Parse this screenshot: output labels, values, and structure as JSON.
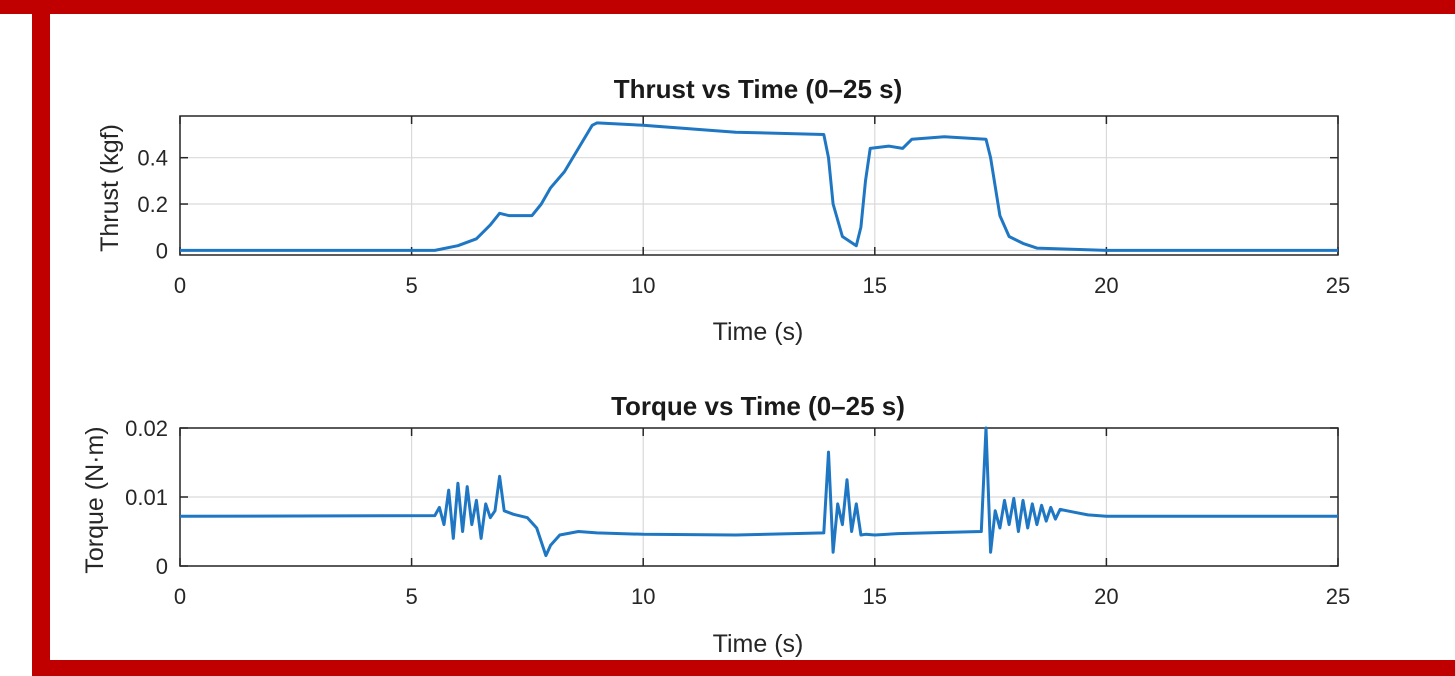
{
  "colors": {
    "border": "#c00000",
    "line": "#1f77c4",
    "grid": "#d9d9d9",
    "axis": "#262626"
  },
  "chart_data": [
    {
      "type": "line",
      "title": "Thrust vs Time (0–25 s)",
      "xlabel": "Time (s)",
      "ylabel": "Thrust (kgf)",
      "xlim": [
        0,
        25
      ],
      "ylim": [
        -0.02,
        0.58
      ],
      "xticks": [
        "0",
        "5",
        "10",
        "15",
        "20",
        "25"
      ],
      "yticks": [
        "0",
        "0.2",
        "0.4"
      ],
      "grid": true,
      "x": [
        0,
        5.5,
        6.0,
        6.4,
        6.7,
        6.9,
        7.1,
        7.6,
        7.8,
        8.0,
        8.3,
        8.6,
        8.9,
        9.0,
        10,
        12,
        13.9,
        14.0,
        14.1,
        14.3,
        14.6,
        14.7,
        14.8,
        14.9,
        15.3,
        15.6,
        15.8,
        16.5,
        17.4,
        17.5,
        17.7,
        17.9,
        18.2,
        18.5,
        20,
        25
      ],
      "values": [
        0,
        0,
        0.02,
        0.05,
        0.11,
        0.16,
        0.15,
        0.15,
        0.2,
        0.27,
        0.34,
        0.44,
        0.54,
        0.55,
        0.54,
        0.51,
        0.5,
        0.4,
        0.2,
        0.06,
        0.02,
        0.1,
        0.3,
        0.44,
        0.45,
        0.44,
        0.48,
        0.49,
        0.48,
        0.4,
        0.15,
        0.06,
        0.03,
        0.01,
        0.0,
        0.0
      ]
    },
    {
      "type": "line",
      "title": "Torque vs Time (0–25 s)",
      "xlabel": "Time (s)",
      "ylabel": "Torque (N·m)",
      "xlim": [
        0,
        25
      ],
      "ylim": [
        0,
        0.02
      ],
      "xticks": [
        "0",
        "5",
        "10",
        "15",
        "20",
        "25"
      ],
      "yticks": [
        "0",
        "0.01",
        "0.02"
      ],
      "grid": true,
      "x": [
        0,
        5.5,
        5.6,
        5.7,
        5.8,
        5.9,
        6.0,
        6.1,
        6.2,
        6.3,
        6.4,
        6.5,
        6.6,
        6.7,
        6.8,
        6.9,
        7.0,
        7.2,
        7.5,
        7.7,
        7.9,
        8.0,
        8.2,
        8.6,
        9,
        10,
        12,
        13.9,
        14.0,
        14.1,
        14.2,
        14.3,
        14.4,
        14.5,
        14.6,
        14.7,
        14.8,
        15.0,
        15.5,
        17.3,
        17.4,
        17.5,
        17.6,
        17.7,
        17.8,
        17.9,
        18.0,
        18.1,
        18.2,
        18.3,
        18.4,
        18.5,
        18.6,
        18.7,
        18.8,
        18.9,
        19.0,
        19.3,
        19.6,
        20,
        22,
        25
      ],
      "values": [
        0.0072,
        0.0073,
        0.0085,
        0.006,
        0.011,
        0.004,
        0.012,
        0.005,
        0.0115,
        0.006,
        0.0095,
        0.004,
        0.009,
        0.007,
        0.008,
        0.013,
        0.008,
        0.0075,
        0.007,
        0.0055,
        0.0015,
        0.003,
        0.0045,
        0.005,
        0.0048,
        0.0046,
        0.0045,
        0.0048,
        0.0165,
        0.002,
        0.009,
        0.006,
        0.0125,
        0.005,
        0.009,
        0.0045,
        0.0046,
        0.0045,
        0.0047,
        0.005,
        0.02,
        0.002,
        0.008,
        0.0055,
        0.0095,
        0.006,
        0.0098,
        0.005,
        0.0095,
        0.0055,
        0.009,
        0.006,
        0.0088,
        0.0065,
        0.0085,
        0.0068,
        0.0082,
        0.0078,
        0.0074,
        0.0072,
        0.0072,
        0.0072
      ]
    }
  ]
}
